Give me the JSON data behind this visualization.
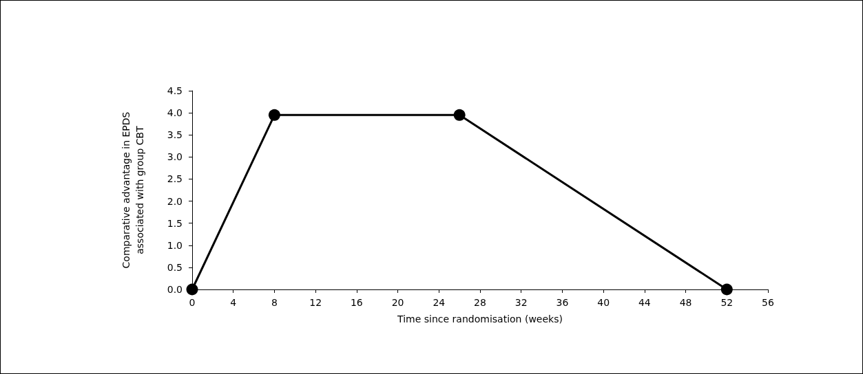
{
  "chart_data": {
    "type": "line",
    "xlabel": "Time since randomisation (weeks)",
    "ylabel": "Comparative advantage in EPDS\nassociated with group CBT",
    "x": [
      0,
      8,
      26,
      52
    ],
    "series": [
      {
        "color": "#000000",
        "values": [
          0,
          3.95,
          3.95,
          0
        ]
      }
    ],
    "xlim": [
      0,
      56
    ],
    "xticks": [
      0,
      4,
      8,
      12,
      16,
      20,
      24,
      28,
      32,
      36,
      40,
      44,
      48,
      52,
      56
    ],
    "ylim": [
      0,
      4.5
    ],
    "yticks": [
      {
        "value": 0,
        "label": "0.0"
      },
      {
        "value": 0.5,
        "label": "0.5"
      },
      {
        "value": 1,
        "label": "1.0"
      },
      {
        "value": 1.5,
        "label": "1.5"
      },
      {
        "value": 2,
        "label": "2.0"
      },
      {
        "value": 2.5,
        "label": "2.5"
      },
      {
        "value": 3,
        "label": "3.0"
      },
      {
        "value": 3.5,
        "label": "3.5"
      },
      {
        "value": 4,
        "label": "4.0"
      },
      {
        "value": 4.5,
        "label": "4.5"
      }
    ],
    "grid": false,
    "marker": "circle",
    "line_style": "solid"
  }
}
